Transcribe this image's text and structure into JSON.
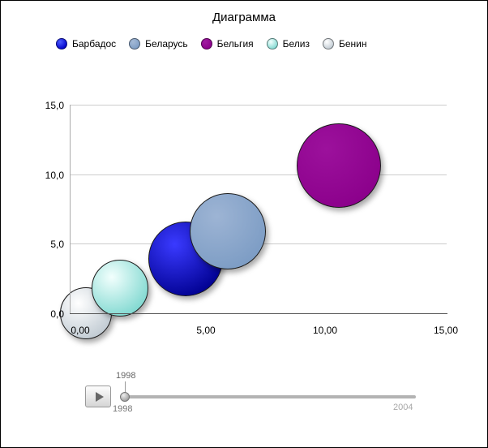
{
  "chart_data": {
    "type": "bubble",
    "title": "Диаграмма",
    "xlabel": "",
    "ylabel": "",
    "xlim": [
      0,
      15
    ],
    "ylim": [
      0,
      15
    ],
    "grid": true,
    "legend_position": "top",
    "x_ticks": [
      {
        "value": 0,
        "label": "0,00"
      },
      {
        "value": 5,
        "label": "5,00"
      },
      {
        "value": 10,
        "label": "10,00"
      },
      {
        "value": 15,
        "label": "15,00"
      }
    ],
    "y_ticks": [
      {
        "value": 0,
        "label": "0,0"
      },
      {
        "value": 5,
        "label": "5,0"
      },
      {
        "value": 10,
        "label": "10,0"
      },
      {
        "value": 15,
        "label": "15,0"
      }
    ],
    "series": [
      {
        "name": "Бенин",
        "slug": "benin",
        "x": 0.65,
        "y": 0.0,
        "radius_px": 32,
        "color": "#c0cad2",
        "highlight": "#ffffff"
      },
      {
        "name": "Белиз",
        "slug": "belize",
        "x": 2.0,
        "y": 1.8,
        "radius_px": 35,
        "color": "#7fd8d0",
        "highlight": "#f2fffd"
      },
      {
        "name": "Барбадос",
        "slug": "barbados",
        "x": 4.6,
        "y": 3.9,
        "radius_px": 46,
        "color": "#000090",
        "highlight": "#3a3aff"
      },
      {
        "name": "Беларусь",
        "slug": "belarus",
        "x": 6.3,
        "y": 5.9,
        "radius_px": 47,
        "color": "#7c9cc4",
        "highlight": "#9db4d4"
      },
      {
        "name": "Бельгия",
        "slug": "belgium",
        "x": 10.7,
        "y": 10.6,
        "radius_px": 52,
        "color": "#8b008b",
        "highlight": "#9c119c"
      }
    ]
  },
  "legend": {
    "items": [
      {
        "label": "Барбадос",
        "color": "#0000c8",
        "highlight": "#4b5cff"
      },
      {
        "label": "Беларусь",
        "color": "#7c9cc4",
        "highlight": "#a5bad6"
      },
      {
        "label": "Бельгия",
        "color": "#8b008b",
        "highlight": "#a01ca0"
      },
      {
        "label": "Белиз",
        "color": "#7fd8d0",
        "highlight": "#f2fffd"
      },
      {
        "label": "Бенин",
        "color": "#c0cad2",
        "highlight": "#ffffff"
      }
    ]
  },
  "timeline": {
    "current_year": "1998",
    "start_year": "1998",
    "end_year": "2004",
    "play_icon": "play-triangle"
  }
}
